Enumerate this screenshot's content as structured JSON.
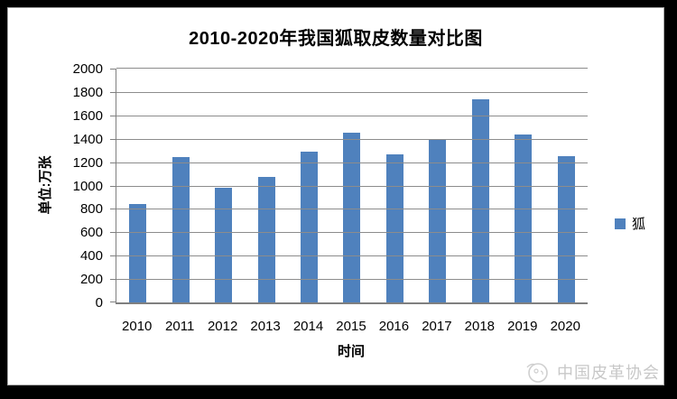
{
  "frame": {
    "background_color": "#000000",
    "panel_color": "#ffffff"
  },
  "chart_data": {
    "type": "bar",
    "title": "2010-2020年我国狐取皮数量对比图",
    "categories": [
      "2010",
      "2011",
      "2012",
      "2013",
      "2014",
      "2015",
      "2016",
      "2017",
      "2018",
      "2019",
      "2020"
    ],
    "values": [
      840,
      1240,
      980,
      1070,
      1290,
      1450,
      1265,
      1400,
      1735,
      1440,
      1250
    ],
    "xlabel": "时间",
    "ylabel": "单位:万张",
    "ylim": [
      0,
      2000
    ],
    "ytick_step": 200,
    "grid": "horizontal",
    "bar_color": "#4f81bd",
    "gridline_color": "#8c8c8c",
    "axis_color": "#7f7f7f",
    "legend_position": "right",
    "legend": [
      {
        "label": "狐",
        "color": "#4f81bd"
      }
    ]
  },
  "watermark": {
    "logo": "china-leather-association-logo",
    "text": "中国皮革协会",
    "color": "#c8c8c8"
  }
}
